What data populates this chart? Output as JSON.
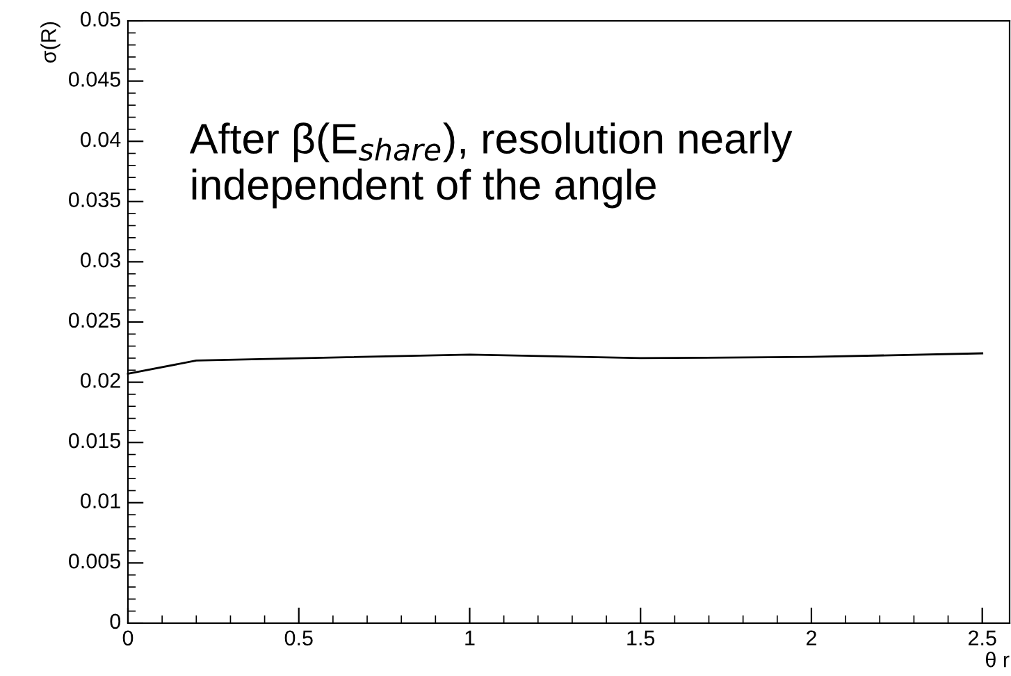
{
  "chart_data": {
    "type": "line",
    "xlabel": "θ r",
    "ylabel": "σ(R)",
    "annotations": [
      "After β(E$_{share}$), resolution nearly independent of the angle"
    ],
    "x": [
      0,
      0.2,
      1,
      1.5,
      2,
      2.5
    ],
    "series": [
      {
        "color": "#000000",
        "values": [
          0.0207,
          0.0218,
          0.0223,
          0.022,
          0.0221,
          0.0224
        ]
      }
    ],
    "xlim": [
      0,
      2.58
    ],
    "ylim": [
      0,
      0.05
    ],
    "xticks": [
      0,
      0.5,
      1,
      1.5,
      2,
      2.5
    ],
    "yticks": [
      0,
      0.005,
      0.01,
      0.015,
      0.02,
      0.025,
      0.03,
      0.035,
      0.04,
      0.045,
      0.05
    ],
    "grid": false,
    "legend": false,
    "marker": "none",
    "line_style": "solid"
  }
}
